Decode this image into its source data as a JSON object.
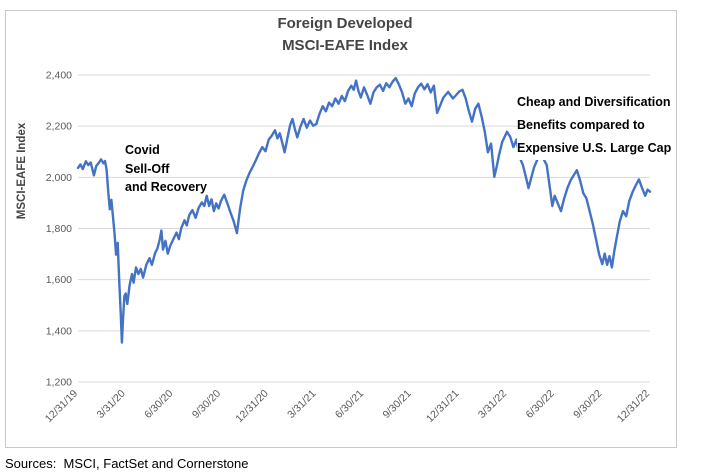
{
  "chart": {
    "title_line1": "Foreign Developed",
    "title_line2": "MSCI-EAFE Index",
    "y_axis_title": "MSCI-EAFE Index"
  },
  "annotations": {
    "covid": {
      "lines": [
        "Covid",
        "Sell-Off",
        "and Recovery"
      ]
    },
    "cheap": {
      "lines": [
        "Cheap and Diversification",
        "Benefits compared to",
        "Expensive U.S. Large Cap"
      ]
    }
  },
  "footer": {
    "sources": "Sources:  MSCI, FactSet and Cornerstone"
  },
  "colors": {
    "line": "#4472C4",
    "gridline": "#d9d9d9",
    "tick_text": "#595959",
    "title_text": "#454545",
    "frame_border": "#c9c9c9"
  },
  "chart_data": {
    "type": "line",
    "title": "Foreign Developed MSCI-EAFE Index",
    "xlabel": "",
    "ylabel": "MSCI-EAFE Index",
    "ylim": [
      1200,
      2400
    ],
    "grid": true,
    "legend": "none",
    "y_ticks": {
      "values": [
        1200,
        1400,
        1600,
        1800,
        2000,
        2200,
        2400
      ],
      "labels": [
        "1,200",
        "1,400",
        "1,600",
        "1,800",
        "2,000",
        "2,200",
        "2,400"
      ]
    },
    "x_ticks": [
      "12/31/19",
      "3/31/20",
      "6/30/20",
      "9/30/20",
      "12/31/20",
      "3/31/21",
      "6/30/21",
      "9/30/21",
      "12/31/21",
      "3/31/22",
      "6/30/22",
      "9/30/22",
      "12/31/22"
    ],
    "x_range_months": 36,
    "series": [
      {
        "name": "MSCI-EAFE Index",
        "points": [
          [
            0,
            2037
          ],
          [
            0.15,
            2050
          ],
          [
            0.3,
            2032
          ],
          [
            0.5,
            2063
          ],
          [
            0.65,
            2048
          ],
          [
            0.8,
            2058
          ],
          [
            1.0,
            2008
          ],
          [
            1.15,
            2045
          ],
          [
            1.3,
            2056
          ],
          [
            1.45,
            2070
          ],
          [
            1.6,
            2055
          ],
          [
            1.7,
            2064
          ],
          [
            1.8,
            2030
          ],
          [
            1.9,
            1945
          ],
          [
            2.0,
            1875
          ],
          [
            2.1,
            1912
          ],
          [
            2.2,
            1845
          ],
          [
            2.3,
            1782
          ],
          [
            2.4,
            1698
          ],
          [
            2.5,
            1744
          ],
          [
            2.6,
            1588
          ],
          [
            2.68,
            1480
          ],
          [
            2.76,
            1354
          ],
          [
            2.84,
            1452
          ],
          [
            2.92,
            1536
          ],
          [
            3.0,
            1546
          ],
          [
            3.1,
            1505
          ],
          [
            3.25,
            1578
          ],
          [
            3.4,
            1622
          ],
          [
            3.5,
            1588
          ],
          [
            3.65,
            1648
          ],
          [
            3.8,
            1622
          ],
          [
            3.95,
            1642
          ],
          [
            4.1,
            1608
          ],
          [
            4.3,
            1658
          ],
          [
            4.5,
            1684
          ],
          [
            4.65,
            1658
          ],
          [
            4.85,
            1704
          ],
          [
            5.0,
            1722
          ],
          [
            5.15,
            1758
          ],
          [
            5.25,
            1792
          ],
          [
            5.35,
            1718
          ],
          [
            5.5,
            1752
          ],
          [
            5.65,
            1702
          ],
          [
            5.8,
            1732
          ],
          [
            6.0,
            1758
          ],
          [
            6.2,
            1784
          ],
          [
            6.35,
            1758
          ],
          [
            6.5,
            1802
          ],
          [
            6.7,
            1832
          ],
          [
            6.85,
            1812
          ],
          [
            7.0,
            1852
          ],
          [
            7.2,
            1872
          ],
          [
            7.4,
            1842
          ],
          [
            7.6,
            1882
          ],
          [
            7.8,
            1902
          ],
          [
            7.95,
            1888
          ],
          [
            8.1,
            1928
          ],
          [
            8.25,
            1888
          ],
          [
            8.4,
            1914
          ],
          [
            8.55,
            1868
          ],
          [
            8.7,
            1898
          ],
          [
            8.85,
            1878
          ],
          [
            9.0,
            1908
          ],
          [
            9.2,
            1932
          ],
          [
            9.4,
            1898
          ],
          [
            9.6,
            1862
          ],
          [
            9.8,
            1828
          ],
          [
            10.0,
            1782
          ],
          [
            10.2,
            1878
          ],
          [
            10.4,
            1948
          ],
          [
            10.6,
            1988
          ],
          [
            10.8,
            2018
          ],
          [
            11.0,
            2042
          ],
          [
            11.2,
            2068
          ],
          [
            11.4,
            2095
          ],
          [
            11.6,
            2118
          ],
          [
            11.8,
            2102
          ],
          [
            12.0,
            2147
          ],
          [
            12.2,
            2163
          ],
          [
            12.4,
            2184
          ],
          [
            12.55,
            2152
          ],
          [
            12.7,
            2172
          ],
          [
            12.85,
            2136
          ],
          [
            13.0,
            2098
          ],
          [
            13.2,
            2158
          ],
          [
            13.35,
            2204
          ],
          [
            13.5,
            2228
          ],
          [
            13.65,
            2188
          ],
          [
            13.8,
            2156
          ],
          [
            14.0,
            2198
          ],
          [
            14.2,
            2228
          ],
          [
            14.4,
            2194
          ],
          [
            14.6,
            2222
          ],
          [
            14.8,
            2202
          ],
          [
            15.0,
            2208
          ],
          [
            15.2,
            2248
          ],
          [
            15.4,
            2278
          ],
          [
            15.6,
            2258
          ],
          [
            15.8,
            2292
          ],
          [
            16.0,
            2278
          ],
          [
            16.2,
            2308
          ],
          [
            16.4,
            2288
          ],
          [
            16.6,
            2318
          ],
          [
            16.8,
            2298
          ],
          [
            17.0,
            2338
          ],
          [
            17.2,
            2358
          ],
          [
            17.35,
            2342
          ],
          [
            17.5,
            2378
          ],
          [
            17.65,
            2338
          ],
          [
            17.8,
            2312
          ],
          [
            18.0,
            2352
          ],
          [
            18.2,
            2322
          ],
          [
            18.4,
            2288
          ],
          [
            18.6,
            2332
          ],
          [
            18.8,
            2352
          ],
          [
            19.0,
            2362
          ],
          [
            19.2,
            2338
          ],
          [
            19.4,
            2368
          ],
          [
            19.6,
            2352
          ],
          [
            19.8,
            2374
          ],
          [
            20.0,
            2388
          ],
          [
            20.2,
            2362
          ],
          [
            20.4,
            2332
          ],
          [
            20.6,
            2288
          ],
          [
            20.8,
            2308
          ],
          [
            21.0,
            2278
          ],
          [
            21.2,
            2328
          ],
          [
            21.4,
            2352
          ],
          [
            21.6,
            2366
          ],
          [
            21.8,
            2344
          ],
          [
            22.0,
            2364
          ],
          [
            22.2,
            2332
          ],
          [
            22.4,
            2358
          ],
          [
            22.6,
            2252
          ],
          [
            22.8,
            2282
          ],
          [
            23.0,
            2312
          ],
          [
            23.3,
            2334
          ],
          [
            23.6,
            2308
          ],
          [
            23.8,
            2322
          ],
          [
            24.0,
            2336
          ],
          [
            24.2,
            2342
          ],
          [
            24.4,
            2308
          ],
          [
            24.6,
            2258
          ],
          [
            24.8,
            2218
          ],
          [
            25.0,
            2268
          ],
          [
            25.2,
            2288
          ],
          [
            25.4,
            2238
          ],
          [
            25.6,
            2178
          ],
          [
            25.8,
            2098
          ],
          [
            26.0,
            2132
          ],
          [
            26.2,
            2002
          ],
          [
            26.35,
            2042
          ],
          [
            26.5,
            2088
          ],
          [
            26.7,
            2138
          ],
          [
            27.0,
            2178
          ],
          [
            27.2,
            2158
          ],
          [
            27.4,
            2118
          ],
          [
            27.6,
            2148
          ],
          [
            27.8,
            2078
          ],
          [
            28.0,
            2048
          ],
          [
            28.2,
            1998
          ],
          [
            28.35,
            1958
          ],
          [
            28.5,
            1992
          ],
          [
            28.7,
            2038
          ],
          [
            28.9,
            2068
          ],
          [
            29.1,
            2092
          ],
          [
            29.3,
            2072
          ],
          [
            29.5,
            2048
          ],
          [
            29.7,
            1958
          ],
          [
            29.85,
            1888
          ],
          [
            30.0,
            1928
          ],
          [
            30.2,
            1898
          ],
          [
            30.4,
            1868
          ],
          [
            30.6,
            1918
          ],
          [
            30.8,
            1958
          ],
          [
            31.0,
            1988
          ],
          [
            31.2,
            2008
          ],
          [
            31.4,
            2028
          ],
          [
            31.6,
            1988
          ],
          [
            31.8,
            1938
          ],
          [
            32.0,
            1918
          ],
          [
            32.2,
            1868
          ],
          [
            32.4,
            1818
          ],
          [
            32.6,
            1758
          ],
          [
            32.8,
            1698
          ],
          [
            33.0,
            1661
          ],
          [
            33.15,
            1702
          ],
          [
            33.3,
            1658
          ],
          [
            33.45,
            1692
          ],
          [
            33.6,
            1648
          ],
          [
            33.75,
            1712
          ],
          [
            33.9,
            1762
          ],
          [
            34.1,
            1828
          ],
          [
            34.3,
            1868
          ],
          [
            34.5,
            1848
          ],
          [
            34.7,
            1908
          ],
          [
            34.9,
            1942
          ],
          [
            35.1,
            1968
          ],
          [
            35.3,
            1992
          ],
          [
            35.5,
            1958
          ],
          [
            35.7,
            1928
          ],
          [
            35.85,
            1952
          ],
          [
            36.0,
            1944
          ]
        ]
      }
    ]
  }
}
